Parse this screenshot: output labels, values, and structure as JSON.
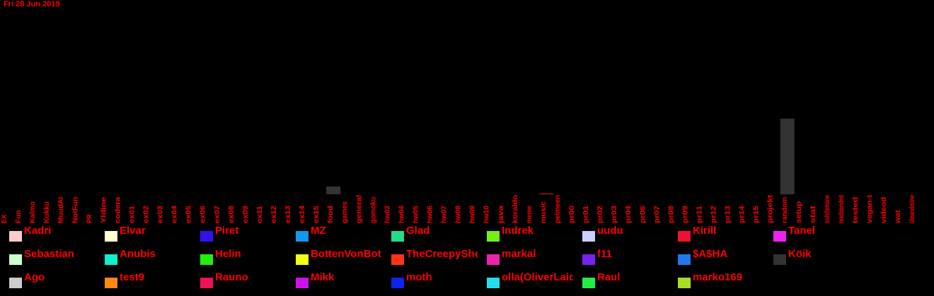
{
  "date": "Fri 28 Jun 2019",
  "chart_data": {
    "type": "bar",
    "stacked": true,
    "categories": [
      "EX",
      "Fun",
      "Kalmo",
      "Kokku",
      "MuudAI",
      "NotFun",
      "PR",
      "Yldine",
      "codera",
      "ex01",
      "ex02",
      "ex03",
      "ex04",
      "ex05",
      "ex06",
      "ex07",
      "ex08",
      "ex09",
      "ex11",
      "ex12",
      "ex13",
      "ex14",
      "ex15",
      "food",
      "games",
      "general",
      "gomoku",
      "hw03",
      "hw04",
      "hw05",
      "hw06",
      "hw07",
      "hw08",
      "hw09",
      "hw10",
      "java",
      "koraldo",
      "meme",
      "music",
      "pelmeen",
      "pr00",
      "pr01",
      "pr02",
      "pr03",
      "pr04",
      "pr06",
      "pr07",
      "pr08",
      "pr09",
      "pr11",
      "pr12",
      "pr13",
      "pr14",
      "pr15",
      "projekt",
      "random",
      "setup",
      "stat",
      "suhtlemine",
      "teadaanded",
      "tested",
      "vegan-t",
      "videod",
      "wat",
      "üleandmine"
    ],
    "series": [
      {
        "name": "Köik",
        "values": [
          0,
          0,
          0,
          0,
          0,
          0,
          0,
          0,
          0,
          0,
          0,
          0,
          0,
          0,
          0,
          0,
          0,
          0,
          0,
          0,
          0,
          0,
          0,
          11,
          0,
          0,
          0,
          0,
          0,
          0,
          0,
          0,
          0,
          0,
          0,
          0,
          0,
          0,
          0,
          0,
          0,
          0,
          0,
          0,
          0,
          0,
          0,
          0,
          0,
          0,
          0,
          0,
          0,
          0,
          0,
          107,
          0,
          0,
          0,
          0,
          0,
          0,
          0,
          0,
          0
        ]
      },
      {
        "name": "Kirill",
        "values": [
          0,
          0,
          0,
          0,
          0,
          0,
          0,
          0,
          0,
          0,
          0,
          0,
          0,
          0,
          0,
          0,
          0,
          0,
          0,
          0,
          0,
          0,
          0,
          0,
          0,
          0,
          0,
          0,
          0,
          0,
          0,
          0,
          0,
          0,
          0,
          0,
          0,
          0,
          1,
          0,
          0,
          0,
          0,
          0,
          0,
          0,
          0,
          0,
          0,
          0,
          0,
          0,
          0,
          0,
          0,
          0,
          0,
          0,
          0,
          0,
          0,
          0,
          0,
          0,
          0
        ]
      }
    ],
    "ylim": [
      0,
      275
    ]
  },
  "legend": [
    {
      "name": "Kadri",
      "color": "#ffcccc"
    },
    {
      "name": "Elvar",
      "color": "#ffffcc"
    },
    {
      "name": "Piret",
      "color": "#3311ee"
    },
    {
      "name": "MZ",
      "color": "#1199ee"
    },
    {
      "name": "Glad",
      "color": "#22dd88"
    },
    {
      "name": "Indrek",
      "color": "#77ee11"
    },
    {
      "name": "uudu",
      "color": "#ccccff"
    },
    {
      "name": "Kirill",
      "color": "#ee1133"
    },
    {
      "name": "Tanel",
      "color": "#ee22ee"
    },
    {
      "name": "Sebastian",
      "color": "#ccffcc"
    },
    {
      "name": "Anubis",
      "color": "#11eecc"
    },
    {
      "name": "Helin",
      "color": "#22ee11"
    },
    {
      "name": "BottenVonBot",
      "color": "#eeff11"
    },
    {
      "name": "TheCreepySheep",
      "color": "#ff3311"
    },
    {
      "name": "markal",
      "color": "#ee22aa"
    },
    {
      "name": "f11",
      "color": "#7722ee"
    },
    {
      "name": "$A$HA",
      "color": "#2277ee"
    },
    {
      "name": "Köik",
      "color": "#333333"
    },
    {
      "name": "Ago",
      "color": "#cccccc"
    },
    {
      "name": "test9",
      "color": "#ff8811"
    },
    {
      "name": "Rauno",
      "color": "#ee1155"
    },
    {
      "name": "Mikk",
      "color": "#cc11ee"
    },
    {
      "name": "moth",
      "color": "#1122ee"
    },
    {
      "name": "olla(OliverLaidma)",
      "color": "#22ddee"
    },
    {
      "name": "Raul",
      "color": "#22ee44"
    },
    {
      "name": "marko169",
      "color": "#aadd22"
    }
  ]
}
